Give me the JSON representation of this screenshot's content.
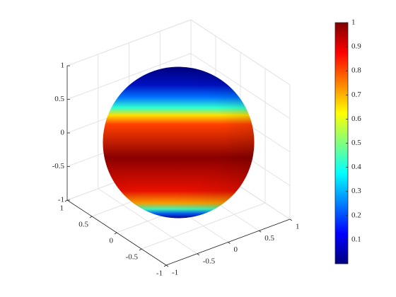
{
  "chart_data": {
    "type": "surface",
    "colormap": "jet",
    "xlim": [
      -1,
      1
    ],
    "xticks": [
      -1,
      -0.5,
      0,
      0.5,
      1
    ],
    "ylim": [
      -1,
      1
    ],
    "yticks": [
      -1,
      -0.5,
      0,
      0.5,
      1
    ],
    "zlim": [
      -1,
      1
    ],
    "zticks": [
      -1,
      -0.5,
      0,
      0.5,
      1
    ],
    "grid": true,
    "colorbar": {
      "clim": [
        0,
        1
      ],
      "ticks": [
        0.1,
        0.2,
        0.3,
        0.4,
        0.5,
        0.6,
        0.7,
        0.8,
        0.9,
        1
      ]
    }
  }
}
